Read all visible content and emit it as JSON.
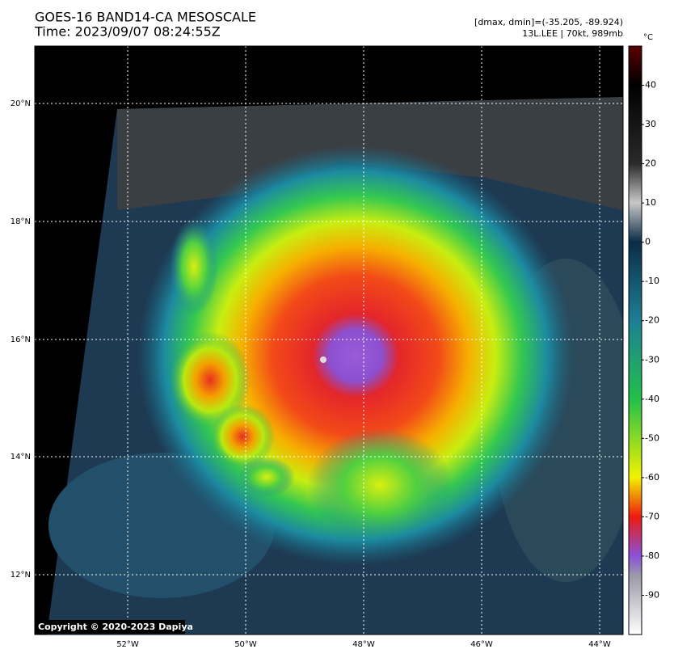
{
  "header": {
    "title": "GOES-16 BAND14-CA MESOSCALE",
    "time": "Time: 2023/09/07 08:24:55Z",
    "info": [
      "[dmax, dmin]=(-35.205, -89.924)",
      "13L.LEE | 70kt, 989mb"
    ]
  },
  "map": {
    "lat_labels": [
      "20°N",
      "18°N",
      "16°N",
      "14°N",
      "12°N"
    ],
    "lon_labels": [
      "52°W",
      "50°W",
      "48°W",
      "46°W",
      "44°W"
    ],
    "copyright": "Copyright © 2020-2023 Dapiya"
  },
  "colorbar": {
    "unit": "°C",
    "lim": [
      -100,
      50
    ],
    "ticks": [
      40,
      30,
      20,
      10,
      0,
      -10,
      -20,
      -30,
      -40,
      -50,
      -60,
      -70,
      -80,
      -90
    ]
  }
}
